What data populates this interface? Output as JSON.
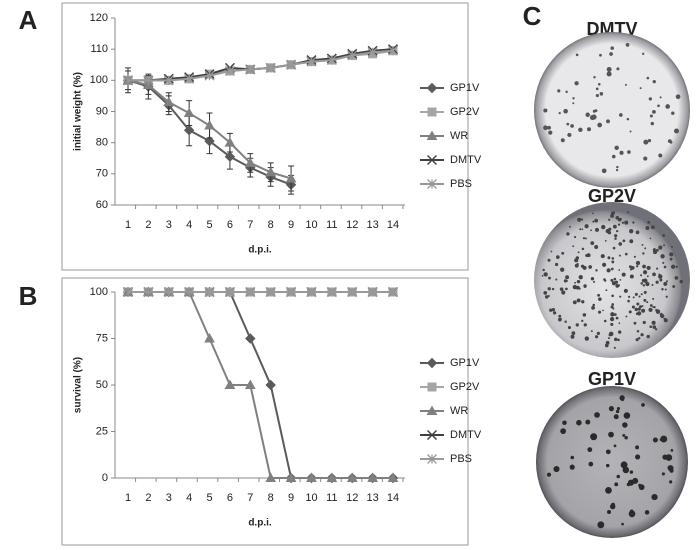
{
  "panel_labels": [
    "A",
    "B",
    "C"
  ],
  "plates": [
    "DMTV",
    "GP2V",
    "GP1V"
  ],
  "chart_data": [
    {
      "type": "line",
      "ylabel": "initial weight (%)",
      "xlabel": "d.p.i.",
      "categories": [
        "1",
        "2",
        "3",
        "4",
        "5",
        "6",
        "7",
        "8",
        "9",
        "10",
        "11",
        "12",
        "13",
        "14"
      ],
      "ylim": [
        60,
        120
      ],
      "yticks": [
        60,
        70,
        80,
        90,
        100,
        110,
        120
      ],
      "legend": "right",
      "series": [
        {
          "name": "GP1V",
          "color": "#5a5a5a",
          "marker": "diamond",
          "values": [
            100,
            98,
            92,
            84,
            80.5,
            75.5,
            72,
            69,
            66.5,
            null,
            null,
            null,
            null,
            null
          ],
          "errors": [
            4,
            4,
            3,
            5,
            4,
            4,
            3,
            3,
            3,
            null,
            null,
            null,
            null,
            null
          ]
        },
        {
          "name": "GP2V",
          "color": "#a6a6a6",
          "marker": "square",
          "values": [
            100,
            100,
            100,
            100.5,
            102,
            103,
            103.5,
            104,
            105,
            106,
            106.5,
            108,
            108.5,
            109.5
          ]
        },
        {
          "name": "WR",
          "color": "#808080",
          "marker": "triangle",
          "values": [
            100,
            98.5,
            93,
            89.5,
            85.5,
            80,
            73.5,
            70.5,
            68.5,
            null,
            null,
            null,
            null,
            null
          ],
          "errors": [
            3,
            3,
            3,
            4,
            4,
            3,
            3,
            3,
            4,
            null,
            null,
            null,
            null,
            null
          ]
        },
        {
          "name": "DMTV",
          "color": "#404040",
          "marker": "x",
          "values": [
            100,
            100,
            100.5,
            101,
            102,
            104,
            103.5,
            104,
            105,
            106.5,
            107,
            108.5,
            109.5,
            110
          ]
        },
        {
          "name": "PBS",
          "color": "#999999",
          "marker": "star",
          "values": [
            100,
            100,
            100,
            100.5,
            101.5,
            103,
            103.5,
            104,
            105,
            106,
            106.5,
            108,
            109,
            109.5
          ]
        }
      ]
    },
    {
      "type": "line",
      "ylabel": "survival (%)",
      "xlabel": "d.p.i.",
      "categories": [
        "1",
        "2",
        "3",
        "4",
        "5",
        "6",
        "7",
        "8",
        "9",
        "10",
        "11",
        "12",
        "13",
        "14"
      ],
      "ylim": [
        0,
        100
      ],
      "yticks": [
        0,
        25,
        50,
        75,
        100
      ],
      "legend": "right",
      "series": [
        {
          "name": "GP1V",
          "color": "#5a5a5a",
          "marker": "diamond",
          "values": [
            100,
            100,
            100,
            100,
            100,
            100,
            75,
            50,
            0,
            0,
            0,
            0,
            0,
            0
          ]
        },
        {
          "name": "GP2V",
          "color": "#a6a6a6",
          "marker": "square",
          "values": [
            100,
            100,
            100,
            100,
            100,
            100,
            100,
            100,
            100,
            100,
            100,
            100,
            100,
            100
          ]
        },
        {
          "name": "WR",
          "color": "#808080",
          "marker": "triangle",
          "values": [
            100,
            100,
            100,
            100,
            75,
            50,
            50,
            0,
            0,
            0,
            0,
            0,
            0,
            0
          ]
        },
        {
          "name": "DMTV",
          "color": "#404040",
          "marker": "x",
          "values": [
            100,
            100,
            100,
            100,
            100,
            100,
            100,
            100,
            100,
            100,
            100,
            100,
            100,
            100
          ]
        },
        {
          "name": "PBS",
          "color": "#999999",
          "marker": "star",
          "values": [
            100,
            100,
            100,
            100,
            100,
            100,
            100,
            100,
            100,
            100,
            100,
            100,
            100,
            100
          ]
        }
      ]
    }
  ]
}
